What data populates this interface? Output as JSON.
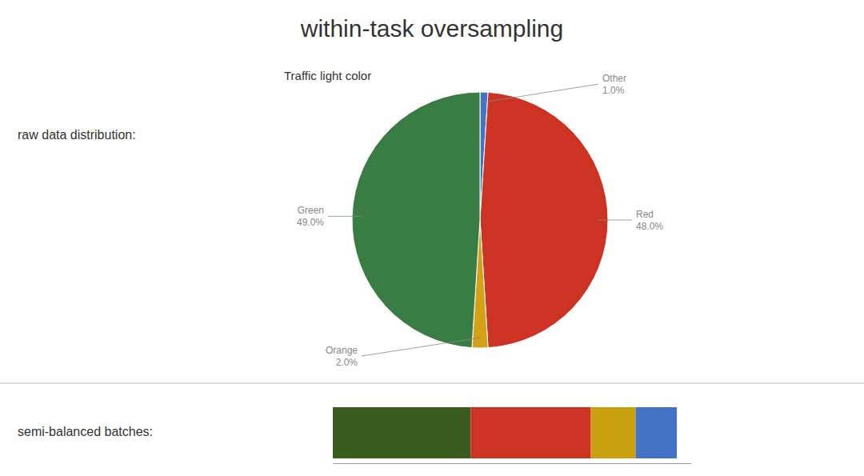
{
  "title": "within-task oversampling",
  "chart_data": [
    {
      "type": "pie",
      "title": "Traffic light color",
      "subtitle": "raw data distribution:",
      "categories": [
        "Other",
        "Red",
        "Orange",
        "Green"
      ],
      "values": [
        1.0,
        48.0,
        2.0,
        49.0
      ],
      "value_labels": [
        "1.0%",
        "48.0%",
        "2.0%",
        "49.0%"
      ],
      "colors": [
        "#4472c4",
        "#cc3322",
        "#d4a017",
        "#3a7d44"
      ]
    },
    {
      "type": "bar",
      "title": "semi-balanced batches:",
      "orientation": "horizontal",
      "stacked": true,
      "values": [
        0.385,
        0.335,
        0.125,
        0.115
      ],
      "colors": [
        "#3a5c1e",
        "#cc3322",
        "#c8a010",
        "#4472c4"
      ],
      "xlim": [
        0,
        1
      ],
      "tick_labels": false
    }
  ]
}
